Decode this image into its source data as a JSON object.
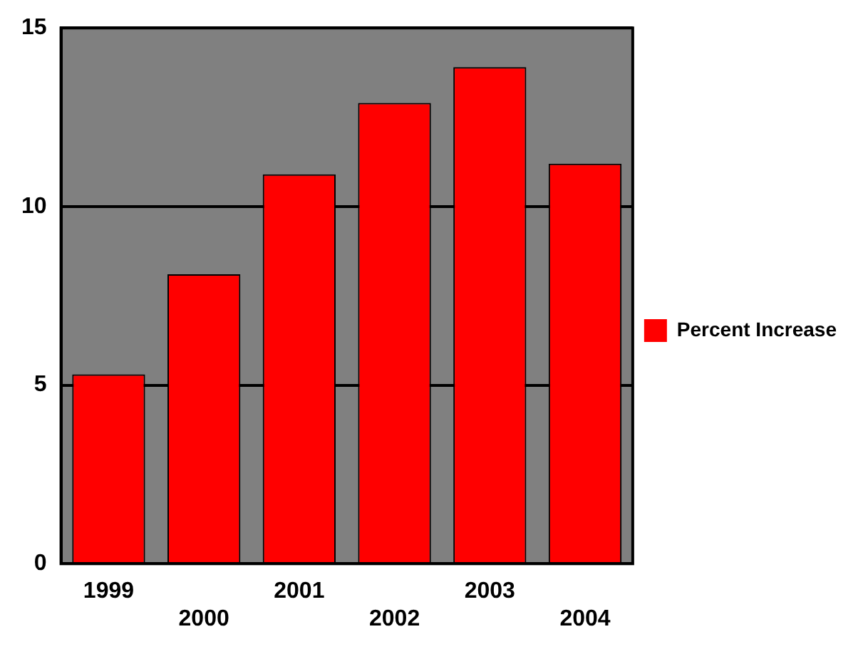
{
  "chart_data": {
    "type": "bar",
    "categories": [
      "1999",
      "2000",
      "2001",
      "2002",
      "2003",
      "2004"
    ],
    "series": [
      {
        "name": "Percent Increase",
        "color": "#ff0000",
        "values": [
          5.3,
          8.1,
          10.9,
          12.9,
          13.9,
          11.2
        ]
      }
    ],
    "ylim": [
      0,
      15
    ],
    "yticks": [
      0,
      5,
      10,
      15
    ],
    "grid": "y",
    "legend": "right"
  }
}
